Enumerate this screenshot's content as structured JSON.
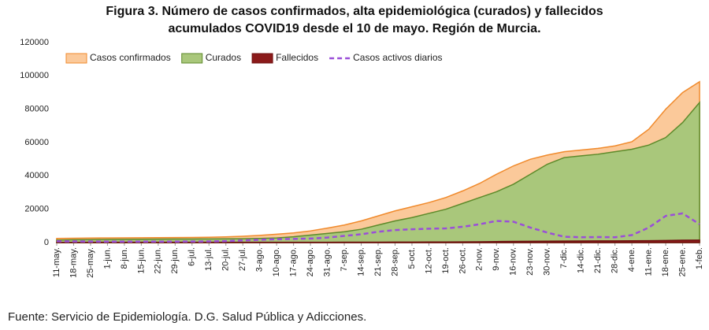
{
  "chart_data": {
    "type": "area",
    "title": "Figura 3. Número de casos confirmados, alta epidemiológica (curados) y fallecidos acumulados COVID19 desde el 10 de mayo. Región de Murcia.",
    "source": "Fuente: Servicio de Epidemiología. D.G. Salud Pública y Adicciones.",
    "categories": [
      "11-may.",
      "18-may.",
      "25-may.",
      "1-jun.",
      "8-jun.",
      "15-jun.",
      "22-jun.",
      "29-jun.",
      "6-jul.",
      "13-jul.",
      "20-jul.",
      "27-jul.",
      "3-ago.",
      "10-ago.",
      "17-ago.",
      "24-ago.",
      "31-ago.",
      "7-sep.",
      "14-sep.",
      "21-sep.",
      "28-sep.",
      "5-oct.",
      "12-oct.",
      "19-oct.",
      "26-oct.",
      "2-nov.",
      "9-nov.",
      "16-nov.",
      "23-nov.",
      "30-nov.",
      "7-dic.",
      "14-dic.",
      "21-dic.",
      "28-dic.",
      "4-ene.",
      "11-ene.",
      "18-ene.",
      "25-ene.",
      "1-feb."
    ],
    "series": [
      {
        "name": "Casos confirmados",
        "type": "area",
        "color": "#fbc99a",
        "stroke": "#f08a2c",
        "values": [
          2500,
          2600,
          2700,
          2800,
          2850,
          2900,
          2950,
          3000,
          3100,
          3200,
          3400,
          3800,
          4300,
          5000,
          5800,
          7000,
          8700,
          10500,
          13000,
          16000,
          19000,
          21500,
          24000,
          27000,
          31000,
          35500,
          41000,
          46000,
          50000,
          52500,
          54500,
          55500,
          56500,
          58000,
          60500,
          68000,
          80000,
          90000,
          96500
        ]
      },
      {
        "name": "Curados",
        "type": "area",
        "color": "#a9c77b",
        "stroke": "#5d8a2a",
        "values": [
          1500,
          1700,
          1800,
          1900,
          1950,
          2000,
          2050,
          2100,
          2150,
          2200,
          2250,
          2300,
          2500,
          2800,
          3500,
          4500,
          5500,
          6500,
          8000,
          10500,
          13000,
          15000,
          17500,
          20000,
          23500,
          27000,
          30500,
          35000,
          41000,
          47000,
          51000,
          52000,
          53000,
          54500,
          56000,
          58500,
          63000,
          72000,
          84000
        ]
      },
      {
        "name": "Fallecidos",
        "type": "area",
        "color": "#8b1a1a",
        "stroke": "#6e1010",
        "values": [
          140,
          145,
          148,
          150,
          150,
          150,
          150,
          150,
          150,
          150,
          150,
          150,
          152,
          155,
          160,
          170,
          200,
          220,
          240,
          260,
          280,
          300,
          330,
          370,
          420,
          500,
          600,
          700,
          780,
          850,
          900,
          940,
          980,
          1020,
          1060,
          1120,
          1250,
          1400,
          1500
        ]
      },
      {
        "name": "Casos activos diarios",
        "type": "line",
        "dash": true,
        "color": "#9a4fd8",
        "values": [
          800,
          700,
          650,
          600,
          600,
          600,
          600,
          600,
          650,
          700,
          900,
          1300,
          1700,
          2000,
          2200,
          2400,
          3000,
          4000,
          5000,
          6500,
          7500,
          8000,
          8300,
          8500,
          9500,
          11000,
          13000,
          12500,
          9000,
          6000,
          3500,
          3200,
          3300,
          3200,
          4500,
          9000,
          16000,
          17500,
          11000
        ]
      }
    ],
    "ylim": [
      0,
      120000
    ],
    "yticks": [
      0,
      20000,
      40000,
      60000,
      80000,
      100000,
      120000
    ],
    "grid": false,
    "legend": "top-left"
  }
}
